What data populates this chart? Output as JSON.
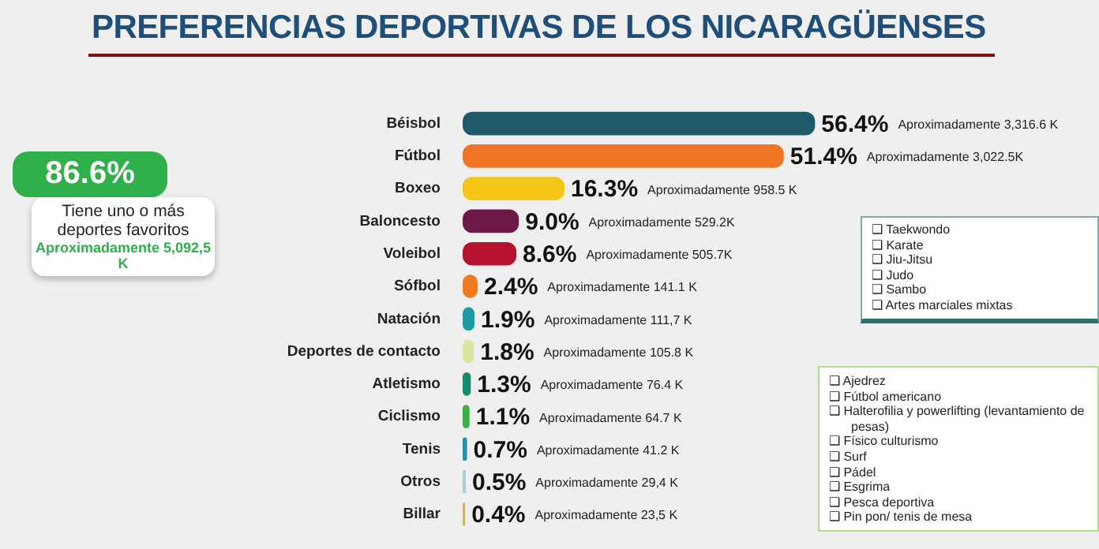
{
  "chart_data": {
    "type": "bar",
    "orientation": "horizontal",
    "title": "PREFERENCIAS DEPORTIVAS DE LOS NICARAGÜENSES",
    "categories": [
      "Béisbol",
      "Fútbol",
      "Boxeo",
      "Baloncesto",
      "Voleibol",
      "Sófbol",
      "Natación",
      "Deportes de contacto",
      "Atletismo",
      "Ciclismo",
      "Tenis",
      "Otros",
      "Billar"
    ],
    "values": [
      56.4,
      51.4,
      16.3,
      9.0,
      8.6,
      2.4,
      1.9,
      1.8,
      1.3,
      1.1,
      0.7,
      0.5,
      0.4
    ],
    "colors": [
      "#1f5a6b",
      "#f07426",
      "#f5c518",
      "#6e1848",
      "#b5122e",
      "#ee7a22",
      "#1f9aa0",
      "#d7e6a0",
      "#1a8a6e",
      "#3fae49",
      "#2a8fa8",
      "#a9cfd8",
      "#c9b26a"
    ],
    "value_labels": [
      "56.4%",
      "51.4%",
      "16.3%",
      "9.0%",
      "8.6%",
      "2.4%",
      "1.9%",
      "1.8%",
      "1.3%",
      "1.1%",
      "0.7%",
      "0.5%",
      "0.4%"
    ],
    "tick_labels": "y",
    "annotations": [
      "86.6%",
      "Tiene uno o más deportes favoritos",
      "Aproximadamente 5,092,5 K",
      "❑ Taekwondo\n❑ Karate\n❑ Jiu-Jitsu\n❑ Judo\n❑ Sambo\n❑ Artes marciales mixtas",
      "❑ Ajedrez\n❑ Fútbol americano\n❑ Halterofilia y powerlifting (levantamiento de pesas)\n❑ Físico culturismo\n❑ Surf\n❑ Pádel\n❑ Esgrima\n❑ Pesca deportiva\n❑ Pin pon/ tenis de mesa",
      "Aproximadamente 3,316.6 K",
      "Aproximadamente 3,022.5K",
      "Aproximadamente 958.5 K",
      "Aproximadamente 529.2K",
      "Aproximadamente 505.7K",
      "Aproximadamente 141.1 K",
      "Aproximadamente 111,7 K",
      "Aproximadamente 105.8 K",
      "Aproximadamente 76.4 K",
      "Aproximadamente 64.7 K",
      "Aproximadamente 41.2 K",
      "Aproximadamente 29,4 K",
      "Aproximadamente 23,5 K"
    ]
  }
}
